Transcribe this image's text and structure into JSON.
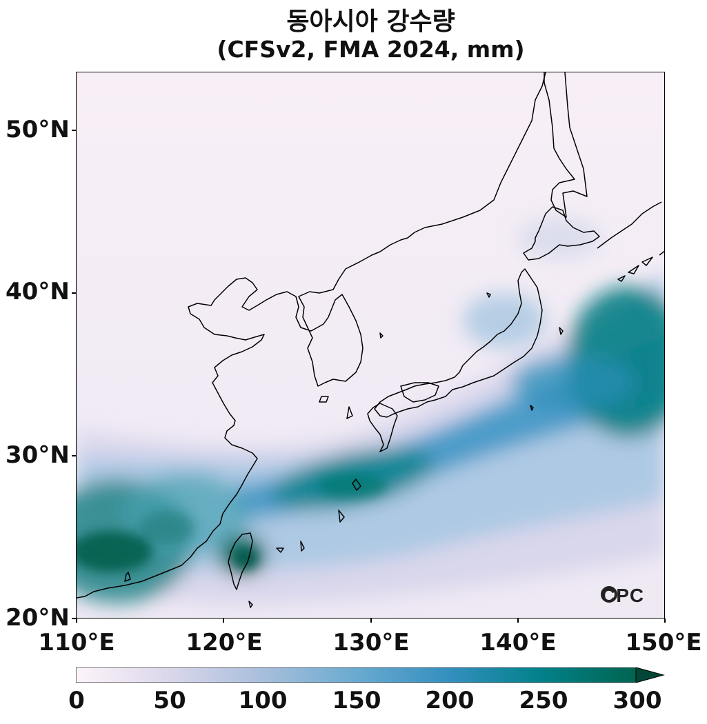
{
  "title": {
    "line1": "동아시아 강수량",
    "line2": "(CFSv2, FMA 2024, mm)"
  },
  "axes": {
    "lat_labels": [
      "50°N",
      "40°N",
      "30°N",
      "20°N"
    ],
    "lon_labels": [
      "110°E",
      "120°E",
      "130°E",
      "140°E",
      "150°E"
    ]
  },
  "colorbar": {
    "labels": [
      "0",
      "50",
      "100",
      "150",
      "200",
      "250",
      "300"
    ],
    "min": 0,
    "max": 300,
    "extend": "max",
    "colors": [
      "#fdf4fa",
      "#d8d5ea",
      "#a6bddb",
      "#67a9cf",
      "#3690c0",
      "#02818a",
      "#016450"
    ]
  },
  "logo": {
    "text": "CPC"
  },
  "map": {
    "region": "East Asia",
    "lon_range": [
      110,
      150
    ],
    "lat_range": [
      20,
      53.5
    ],
    "variable": "precipitation",
    "units": "mm"
  }
}
